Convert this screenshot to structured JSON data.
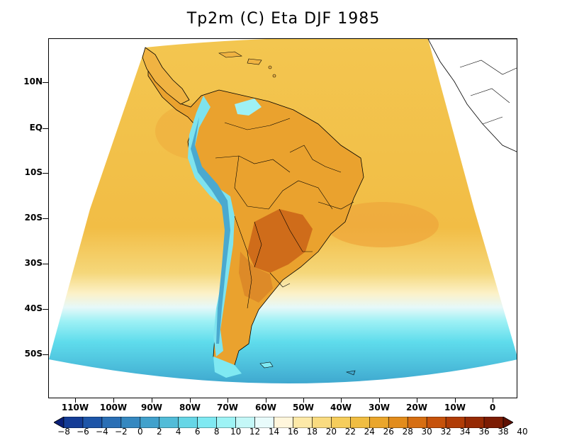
{
  "title": "Tp2m (C) Eta DJF 1985",
  "axes": {
    "lat_labels": [
      "10N",
      "EQ",
      "10S",
      "20S",
      "30S",
      "40S",
      "50S"
    ],
    "lon_labels": [
      "110W",
      "100W",
      "90W",
      "80W",
      "70W",
      "60W",
      "50W",
      "40W",
      "30W",
      "20W",
      "10W",
      "0"
    ]
  },
  "colorbar": {
    "labels": [
      "-8",
      "-6",
      "-4",
      "-2",
      "0",
      "2",
      "4",
      "6",
      "8",
      "10",
      "12",
      "14",
      "16",
      "18",
      "20",
      "22",
      "24",
      "26",
      "28",
      "30",
      "32",
      "34",
      "36",
      "38",
      "40"
    ],
    "colors": [
      "#0a1f78",
      "#143c96",
      "#1d55a8",
      "#2a6fb5",
      "#3588c0",
      "#41a1cc",
      "#52bcd8",
      "#66d6e6",
      "#7fe9f2",
      "#9ef3f5",
      "#c4f7f7",
      "#e8fbfb",
      "#fff6dc",
      "#fde9a8",
      "#f9db80",
      "#f5cd5c",
      "#f0bd42",
      "#eaa62c",
      "#e28c1c",
      "#d66e12",
      "#c6520b",
      "#b03c06",
      "#962a04",
      "#7c1c03",
      "#5f1002"
    ]
  },
  "colors": {
    "ocean_warm": "#f3c04a",
    "ocean_hot": "#eea73a",
    "land_warm": "#eaa02c",
    "land_hot": "#cf6c1a",
    "andes_cold": "#7ee3ee",
    "cold_band": "#5fd9ec",
    "coast_line": "#000000"
  }
}
